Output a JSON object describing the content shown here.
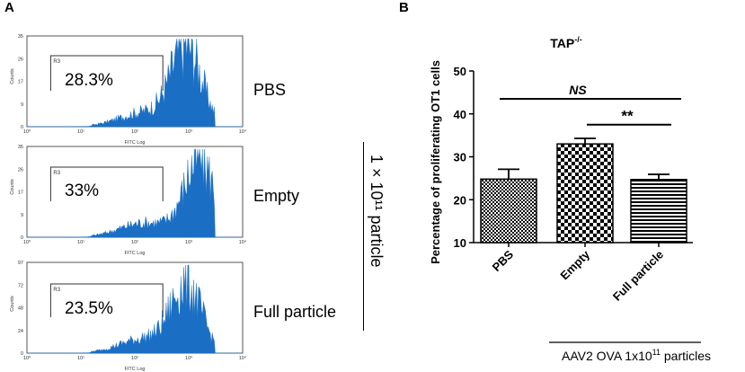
{
  "panel_a": {
    "letter": "A",
    "common": {
      "y_axis_label": "Counts",
      "x_axis_label": "FITC Log",
      "gate_label": "R3",
      "x_ticks": [
        "10⁰",
        "10¹",
        "10²",
        "10³",
        "10⁴"
      ]
    },
    "histograms": [
      {
        "sample": "PBS",
        "percent": "28.3%",
        "y_ticks": [
          "0",
          "9",
          "17",
          "26",
          "35"
        ],
        "color": "#1a6fc4"
      },
      {
        "sample": "Empty",
        "percent": "33%",
        "y_ticks": [
          "0",
          "9",
          "17",
          "26",
          "35"
        ],
        "color": "#1a6fc4"
      },
      {
        "sample": "Full particle",
        "percent": "23.5%",
        "y_ticks": [
          "0",
          "24",
          "48",
          "72",
          "97"
        ],
        "color": "#1a6fc4"
      }
    ],
    "dose_label": "1 × 10¹¹ particle"
  },
  "panel_b": {
    "letter": "B"
  },
  "chart_data": {
    "type": "bar",
    "title": "TAP-/-",
    "title_main": "TAP",
    "title_sup": "-/-",
    "ylabel": "Percentage of proliferating OT1 cells",
    "xlabel": "AAV2 OVA 1x10¹¹ particles",
    "xlabel_main": "AAV2 OVA 1x10",
    "xlabel_sup": "11",
    "xlabel_tail": " particles",
    "categories": [
      "PBS",
      "Empty",
      "Full particle"
    ],
    "values": [
      24.8,
      33.0,
      24.7
    ],
    "errors": [
      2.3,
      1.3,
      1.2
    ],
    "patterns": [
      "fine-check",
      "coarse-check",
      "horizontal-stripes"
    ],
    "ylim": [
      10,
      50
    ],
    "yticks": [
      10,
      20,
      30,
      40,
      50
    ],
    "annotations": [
      {
        "text": "NS",
        "from": 0,
        "to": 2,
        "level": 43.5
      },
      {
        "text": "**",
        "from": 1,
        "to": 2,
        "level": 37.5
      }
    ]
  }
}
